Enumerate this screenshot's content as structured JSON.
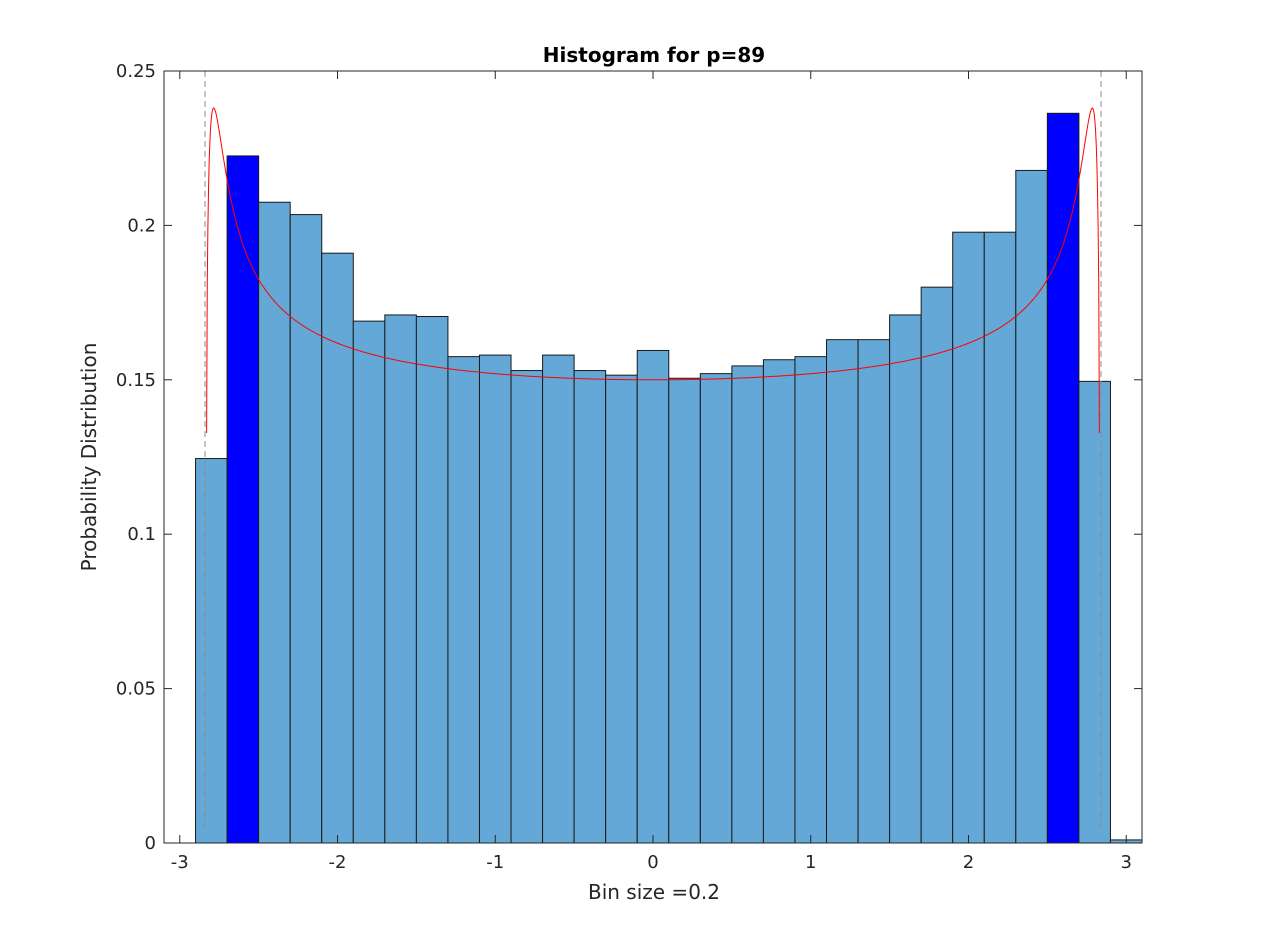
{
  "chart_data": {
    "type": "bar",
    "title": "Histogram for p=89",
    "xlabel": "Bin size =0.2",
    "ylabel": "Probability Distribution",
    "xlim": [
      -3.1,
      3.1
    ],
    "ylim": [
      0,
      0.25
    ],
    "xticks": [
      {
        "value": -3,
        "label": "-3"
      },
      {
        "value": -2,
        "label": "-2"
      },
      {
        "value": -1,
        "label": "-1"
      },
      {
        "value": 0,
        "label": "0"
      },
      {
        "value": 1,
        "label": "1"
      },
      {
        "value": 2,
        "label": "2"
      },
      {
        "value": 3,
        "label": "3"
      }
    ],
    "yticks": [
      {
        "value": 0,
        "label": "0"
      },
      {
        "value": 0.05,
        "label": "0.05"
      },
      {
        "value": 0.1,
        "label": "0.1"
      },
      {
        "value": 0.15,
        "label": "0.15"
      },
      {
        "value": 0.2,
        "label": "0.2"
      },
      {
        "value": 0.25,
        "label": "0.25"
      }
    ],
    "bin_width": 0.2,
    "bin_edges": [
      -3.1,
      -2.9,
      -2.7,
      -2.5,
      -2.3,
      -2.1,
      -1.9,
      -1.7,
      -1.5,
      -1.3,
      -1.1,
      -0.9,
      -0.7,
      -0.5,
      -0.3,
      -0.1,
      0.1,
      0.3,
      0.5,
      0.7,
      0.9,
      1.1,
      1.3,
      1.5,
      1.7,
      1.9,
      2.1,
      2.3,
      2.5,
      2.7,
      2.9,
      3.1
    ],
    "values": [
      0,
      0.1245,
      0.2225,
      0.2075,
      0.2035,
      0.191,
      0.169,
      0.171,
      0.1705,
      0.1575,
      0.158,
      0.153,
      0.158,
      0.153,
      0.1515,
      0.1595,
      0.1505,
      0.152,
      0.1545,
      0.1565,
      0.1575,
      0.163,
      0.163,
      0.171,
      0.18,
      0.1978,
      0.1978,
      0.2178,
      0.2363,
      0.1495,
      0.001
    ],
    "highlighted_bins": [
      2,
      28
    ],
    "bar_color": "#63a8d6",
    "highlight_color": "#0000ff",
    "bar_edge_color": "#1a1a1a",
    "density_curve": {
      "color": "#ff0000",
      "support": [
        -2.83,
        2.83
      ],
      "min_value": 0.15,
      "peak_value": 0.238,
      "peak_x": 2.64
    },
    "reference_lines": {
      "x": [
        -2.84,
        2.84
      ],
      "style": "dashed",
      "color": "#8c8c8c"
    },
    "grid": false,
    "box": true
  }
}
